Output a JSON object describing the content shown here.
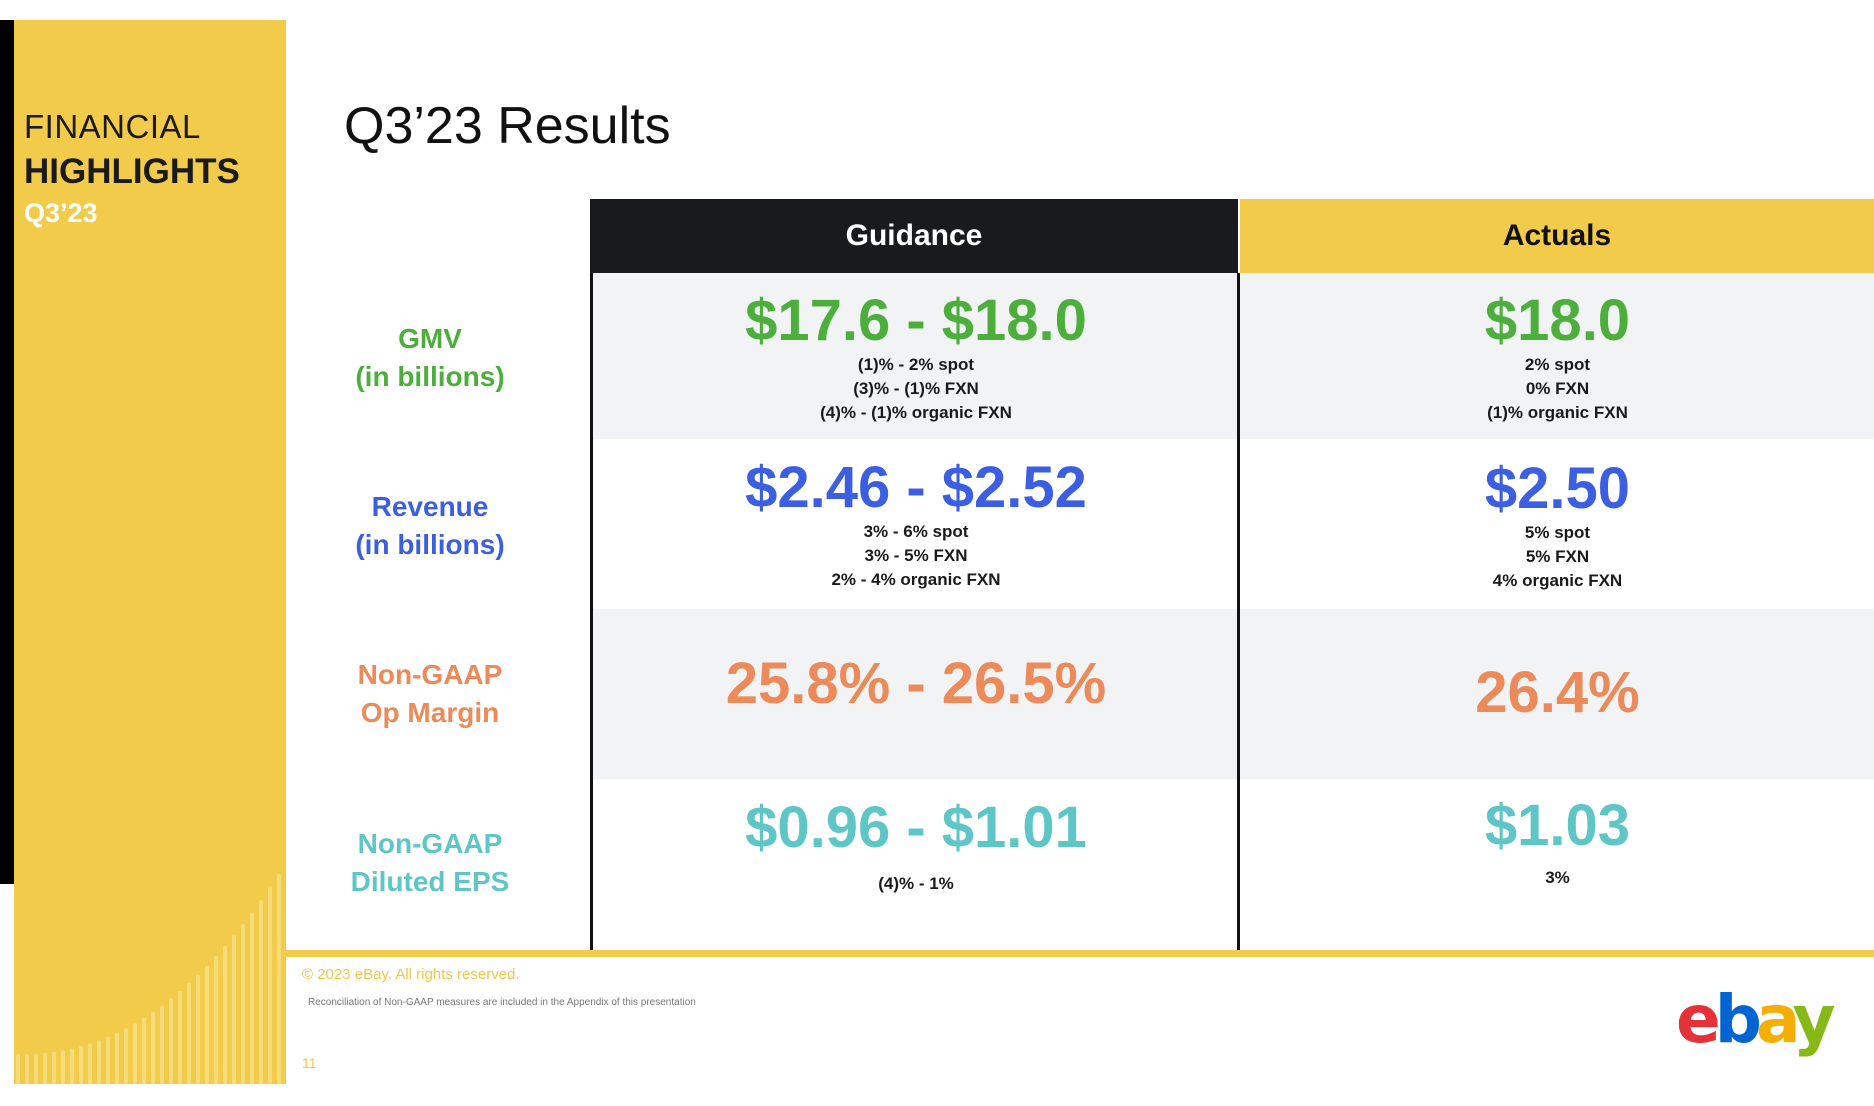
{
  "sidebar": {
    "line1": "FINANCIAL",
    "line2": "HIGHLIGHTS",
    "line3": "Q3’23",
    "accent_color": "#f3cb4a"
  },
  "title": "Q3’23 Results",
  "table": {
    "headers": {
      "guidance": "Guidance",
      "actuals": "Actuals"
    },
    "rows": [
      {
        "label_line1": "GMV",
        "label_line2": "(in billions)",
        "color": "#4caf3c",
        "guidance_value": "$17.6 - $18.0",
        "guidance_details": [
          "(1)% - 2% spot",
          "(3)% - (1)% FXN",
          "(4)% - (1)% organic FXN"
        ],
        "actual_value": "$18.0",
        "actual_details": [
          "2% spot",
          "0% FXN",
          "(1)% organic FXN"
        ]
      },
      {
        "label_line1": "Revenue",
        "label_line2": "(in billions)",
        "color": "#3c5ee0",
        "guidance_value": "$2.46 - $2.52",
        "guidance_details": [
          "3% - 6% spot",
          "3% - 5% FXN",
          "2% - 4% organic FXN"
        ],
        "actual_value": "$2.50",
        "actual_details": [
          "5% spot",
          "5% FXN",
          "4% organic FXN"
        ]
      },
      {
        "label_line1": "Non-GAAP",
        "label_line2": "Op Margin",
        "color": "#ec8a5a",
        "guidance_value": "25.8% - 26.5%",
        "actual_value": "26.4%"
      },
      {
        "label_line1": "Non-GAAP",
        "label_line2": "Diluted EPS",
        "color": "#5ec6c6",
        "guidance_value": "$0.96 - $1.01",
        "guidance_details": [
          "(4)% - 1%"
        ],
        "actual_value": "$1.03",
        "actual_details": [
          "3%"
        ]
      }
    ]
  },
  "footer": {
    "copyright": "© 2023 eBay. All rights reserved.",
    "note": "Reconciliation of Non-GAAP measures are included in the Appendix of this presentation",
    "page_number": "11"
  },
  "logo": {
    "letters": [
      "e",
      "b",
      "a",
      "y"
    ],
    "colors": [
      "#e53238",
      "#0064d2",
      "#f5af02",
      "#86b817"
    ]
  }
}
